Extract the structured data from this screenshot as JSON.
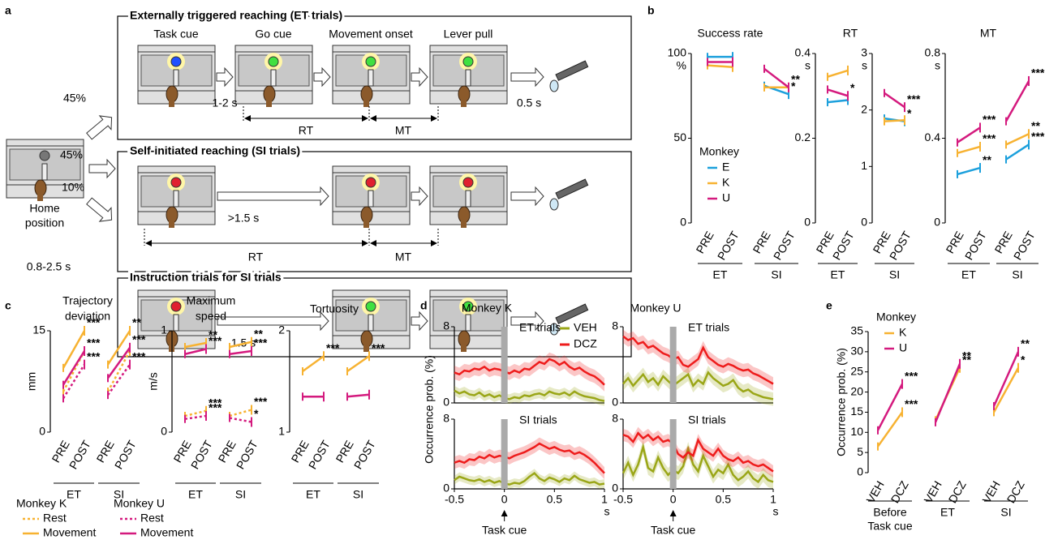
{
  "panel_labels": [
    "a",
    "b",
    "c",
    "d",
    "e"
  ],
  "diagram": {
    "home": [
      "Home",
      "position"
    ],
    "probabilities": [
      "45%",
      "45%",
      "10%"
    ],
    "delay": "0.8-2.5 s",
    "rows": [
      {
        "title": "Externally triggered reaching (ET trials)",
        "events": [
          "Task cue",
          "Go cue",
          "Movement onset",
          "Lever pull"
        ],
        "interval": "1-2 s",
        "rt": "RT",
        "mt": "MT",
        "reward_delay": "0.5 s"
      },
      {
        "title": "Self-initiated reaching (SI trials)",
        "interval": ">1.5 s",
        "rt": "RT",
        "mt": "MT"
      },
      {
        "title": "Instruction trials for SI trials",
        "interval": "1.5 s"
      }
    ]
  },
  "chart_data": [
    {
      "type": "line",
      "title": "Success rate",
      "y_unit": "%",
      "categories": [
        "PRE",
        "POST",
        "PRE",
        "POST"
      ],
      "category_colors": [
        "#1f1fe6",
        "#e8102e",
        "#1f1fe6",
        "#e8102e"
      ],
      "groups": [
        "ET",
        "SI"
      ],
      "ylim": [
        0,
        100
      ],
      "yticks": [
        0,
        50,
        100
      ],
      "legend_title": "Monkey",
      "series": [
        {
          "name": "E",
          "color": "#1ca0dc",
          "values": [
            98,
            98,
            81,
            76
          ],
          "stars": [
            null,
            null,
            null,
            "*"
          ]
        },
        {
          "name": "K",
          "color": "#f7b231",
          "values": [
            93,
            92,
            80,
            80
          ],
          "stars": [
            null,
            null,
            null,
            null
          ]
        },
        {
          "name": "U",
          "color": "#d41a7e",
          "values": [
            95,
            95,
            91,
            80
          ],
          "stars": [
            null,
            null,
            null,
            "**"
          ]
        }
      ]
    },
    {
      "type": "line",
      "title": "RT",
      "y_unit": "s",
      "categories": [
        "PRE",
        "POST"
      ],
      "category_colors": [
        "#1f1fe6",
        "#e8102e"
      ],
      "groups": [
        "ET"
      ],
      "ylim": [
        0,
        0.4
      ],
      "yticks": [
        0,
        0.2,
        0.4
      ],
      "series": [
        {
          "color": "#1ca0dc",
          "values": [
            0.285,
            0.29
          ]
        },
        {
          "color": "#f7b231",
          "values": [
            0.345,
            0.36
          ]
        },
        {
          "color": "#d41a7e",
          "values": [
            0.315,
            0.3
          ],
          "stars": [
            null,
            "*"
          ]
        }
      ]
    },
    {
      "type": "line",
      "y_unit": "s",
      "categories": [
        "PRE",
        "POST"
      ],
      "category_colors": [
        "#1f1fe6",
        "#e8102e"
      ],
      "groups": [
        "SI"
      ],
      "ylim": [
        0,
        3
      ],
      "yticks": [
        0,
        1,
        2,
        3
      ],
      "series": [
        {
          "color": "#1ca0dc",
          "values": [
            1.85,
            1.8
          ],
          "stars": [
            null,
            "*"
          ]
        },
        {
          "color": "#f7b231",
          "values": [
            1.8,
            1.82
          ]
        },
        {
          "color": "#d41a7e",
          "values": [
            2.3,
            2.05
          ],
          "stars": [
            null,
            "***"
          ]
        }
      ]
    },
    {
      "type": "line",
      "title": "MT",
      "y_unit": "s",
      "categories": [
        "PRE",
        "POST",
        "PRE",
        "POST"
      ],
      "category_colors": [
        "#1f1fe6",
        "#e8102e",
        "#1f1fe6",
        "#e8102e"
      ],
      "groups": [
        "ET",
        "SI"
      ],
      "ylim": [
        0,
        0.8
      ],
      "yticks": [
        0,
        0.4,
        0.8
      ],
      "series": [
        {
          "color": "#1ca0dc",
          "values": [
            0.23,
            0.26,
            0.3,
            0.37
          ],
          "stars": [
            null,
            "**",
            null,
            "***"
          ]
        },
        {
          "color": "#f7b231",
          "values": [
            0.33,
            0.36,
            0.37,
            0.42
          ],
          "stars": [
            null,
            "***",
            null,
            "**"
          ]
        },
        {
          "color": "#d41a7e",
          "values": [
            0.38,
            0.45,
            0.48,
            0.67
          ],
          "stars": [
            null,
            "***",
            null,
            "***"
          ]
        }
      ]
    },
    {
      "type": "line",
      "title": [
        "Trajectory",
        "deviation"
      ],
      "ylabel": "mm",
      "categories": [
        "PRE",
        "POST",
        "PRE",
        "POST"
      ],
      "category_colors": [
        "#1f1fe6",
        "#e8102e",
        "#1f1fe6",
        "#e8102e"
      ],
      "groups": [
        "ET",
        "SI"
      ],
      "ylim": [
        0,
        15
      ],
      "yticks": [
        0,
        15
      ],
      "legend_titles": [
        "Monkey K",
        "Monkey U"
      ],
      "series": [
        {
          "name": "Rest",
          "legend_group": 0,
          "dash": true,
          "color": "#f7b231",
          "values": [
            6,
            12,
            6,
            12
          ]
        },
        {
          "name": "Movement",
          "legend_group": 0,
          "dash": false,
          "color": "#f7b231",
          "values": [
            9.5,
            15,
            10,
            15
          ],
          "stars": [
            null,
            "***",
            null,
            "**"
          ]
        },
        {
          "name": "Rest",
          "legend_group": 1,
          "dash": true,
          "color": "#d41a7e",
          "values": [
            5,
            10,
            5.5,
            10
          ],
          "stars": [
            null,
            "***",
            null,
            "***"
          ]
        },
        {
          "name": "Movement",
          "legend_group": 1,
          "dash": false,
          "color": "#d41a7e",
          "values": [
            7,
            12,
            8,
            12.5
          ],
          "stars": [
            null,
            "***",
            null,
            "***"
          ]
        }
      ]
    },
    {
      "type": "line",
      "title": [
        "Maximum",
        "speed"
      ],
      "ylabel": "m/s",
      "categories": [
        "PRE",
        "POST",
        "PRE",
        "POST"
      ],
      "category_colors": [
        "#1f1fe6",
        "#e8102e",
        "#1f1fe6",
        "#e8102e"
      ],
      "groups": [
        "ET",
        "SI"
      ],
      "ylim": [
        0,
        1
      ],
      "yticks": [
        0,
        1
      ],
      "series": [
        {
          "dash": true,
          "color": "#f7b231",
          "values": [
            0.16,
            0.21,
            0.16,
            0.22
          ],
          "stars": [
            null,
            "***",
            null,
            "***"
          ]
        },
        {
          "dash": false,
          "color": "#f7b231",
          "values": [
            0.84,
            0.88,
            0.84,
            0.89
          ],
          "stars": [
            null,
            "**",
            null,
            "**"
          ]
        },
        {
          "dash": true,
          "color": "#d41a7e",
          "values": [
            0.13,
            0.16,
            0.14,
            0.1
          ],
          "stars": [
            null,
            "***",
            null,
            "*"
          ]
        },
        {
          "dash": false,
          "color": "#d41a7e",
          "values": [
            0.77,
            0.82,
            0.77,
            0.8
          ],
          "stars": [
            null,
            "***",
            null,
            "***"
          ]
        }
      ]
    },
    {
      "type": "line",
      "title": [
        "Tortuosity"
      ],
      "categories": [
        "PRE",
        "POST",
        "PRE",
        "POST"
      ],
      "category_colors": [
        "#1f1fe6",
        "#e8102e",
        "#1f1fe6",
        "#e8102e"
      ],
      "groups": [
        "ET",
        "SI"
      ],
      "ylim": [
        1,
        2
      ],
      "yticks": [
        1,
        2
      ],
      "series": [
        {
          "dash": false,
          "color": "#f7b231",
          "values": [
            1.6,
            1.75,
            1.6,
            1.75
          ],
          "stars": [
            null,
            "***",
            null,
            "***"
          ]
        },
        {
          "dash": false,
          "color": "#d41a7e",
          "values": [
            1.35,
            1.35,
            1.35,
            1.37
          ]
        }
      ]
    },
    {
      "type": "line",
      "title": "Monkey K",
      "subtitle": "ET trials",
      "event_x": 0,
      "x": [
        -0.5,
        -0.45,
        -0.4,
        -0.35,
        -0.3,
        -0.25,
        -0.2,
        -0.15,
        -0.1,
        -0.05,
        0,
        0.05,
        0.1,
        0.15,
        0.2,
        0.25,
        0.3,
        0.35,
        0.4,
        0.45,
        0.5,
        0.55,
        0.6,
        0.65,
        0.7,
        0.75,
        0.8,
        0.85,
        0.9,
        0.95,
        1
      ],
      "xlim": [
        -0.5,
        1
      ],
      "ylim": [
        0,
        8
      ],
      "yticks": [
        0,
        8
      ],
      "series": [
        {
          "name": "VEH",
          "color": "#9aa617",
          "error": 0.5,
          "values": [
            1.3,
            1.0,
            1.2,
            0.9,
            0.8,
            1.1,
            0.7,
            0.9,
            0.6,
            0.8,
            0.5,
            0.4,
            0.6,
            0.5,
            0.8,
            0.7,
            0.9,
            1.0,
            0.8,
            1.2,
            1.0,
            0.9,
            1.1,
            0.8,
            1.2,
            0.9,
            0.7,
            0.6,
            0.5,
            0.3,
            0.2
          ]
        },
        {
          "name": "DCZ",
          "color": "#ee1c1c",
          "error": 0.7,
          "values": [
            3.2,
            3.0,
            3.4,
            3.3,
            3.6,
            3.5,
            3.8,
            3.4,
            3.6,
            3.5,
            3.3,
            3.1,
            3.4,
            3.2,
            3.6,
            3.5,
            3.9,
            4.3,
            4.1,
            4.6,
            4.4,
            4.0,
            4.3,
            3.8,
            3.5,
            3.7,
            3.3,
            3.0,
            2.8,
            2.4,
            1.9
          ]
        }
      ]
    },
    {
      "type": "line",
      "title": "Monkey U",
      "subtitle": "ET trials",
      "event_x": 0,
      "x": [
        -0.5,
        -0.45,
        -0.4,
        -0.35,
        -0.3,
        -0.25,
        -0.2,
        -0.15,
        -0.1,
        -0.05,
        0,
        0.05,
        0.1,
        0.15,
        0.2,
        0.25,
        0.3,
        0.35,
        0.4,
        0.45,
        0.5,
        0.55,
        0.6,
        0.65,
        0.7,
        0.75,
        0.8,
        0.85,
        0.9,
        0.95,
        1
      ],
      "xlim": [
        -0.5,
        1
      ],
      "ylim": [
        0,
        8
      ],
      "yticks": [
        0,
        8
      ],
      "series": [
        {
          "color": "#9aa617",
          "error": 0.7,
          "values": [
            2.0,
            2.6,
            1.8,
            2.4,
            3.0,
            2.2,
            2.6,
            1.9,
            2.8,
            2.3,
            1.8,
            2.2,
            2.6,
            3.0,
            1.8,
            2.4,
            2.0,
            3.2,
            2.6,
            2.2,
            1.8,
            2.0,
            2.4,
            1.6,
            1.2,
            1.4,
            1.0,
            0.8,
            0.6,
            0.5,
            0.4
          ]
        },
        {
          "color": "#ee1c1c",
          "error": 0.7,
          "values": [
            7.0,
            6.6,
            6.8,
            6.2,
            6.4,
            5.8,
            6.0,
            5.6,
            5.2,
            5.0,
            4.6,
            4.8,
            4.0,
            3.8,
            4.2,
            4.6,
            5.8,
            4.8,
            4.4,
            4.0,
            3.8,
            4.1,
            3.9,
            3.6,
            3.4,
            3.5,
            3.1,
            2.9,
            2.6,
            2.3,
            2.0
          ]
        }
      ]
    },
    {
      "type": "line",
      "subtitle": "SI trials",
      "ylabel": "Occurrence prob. (%)",
      "xlabel": "s",
      "annotation": "Task cue",
      "event_x": 0,
      "x": [
        -0.5,
        -0.45,
        -0.4,
        -0.35,
        -0.3,
        -0.25,
        -0.2,
        -0.15,
        -0.1,
        -0.05,
        0,
        0.05,
        0.1,
        0.15,
        0.2,
        0.25,
        0.3,
        0.35,
        0.4,
        0.45,
        0.5,
        0.55,
        0.6,
        0.65,
        0.7,
        0.75,
        0.8,
        0.85,
        0.9,
        0.95,
        1
      ],
      "xlim": [
        -0.5,
        1
      ],
      "xticks": [
        -0.5,
        0,
        0.5,
        1
      ],
      "ylim": [
        0,
        8
      ],
      "yticks": [
        0,
        8
      ],
      "series": [
        {
          "color": "#9aa617",
          "error": 0.5,
          "values": [
            1.0,
            1.4,
            1.2,
            1.0,
            0.9,
            1.1,
            0.8,
            1.0,
            0.7,
            0.9,
            0.6,
            0.5,
            0.7,
            0.6,
            0.9,
            1.4,
            1.8,
            1.2,
            0.9,
            1.3,
            1.1,
            0.8,
            1.2,
            1.0,
            1.5,
            1.1,
            0.9,
            0.7,
            0.8,
            0.5,
            0.6
          ]
        },
        {
          "color": "#ee1c1c",
          "error": 0.7,
          "values": [
            3.0,
            3.2,
            3.0,
            3.4,
            3.3,
            3.7,
            3.5,
            3.9,
            3.6,
            3.8,
            3.7,
            3.5,
            3.8,
            4.0,
            4.2,
            4.5,
            4.8,
            5.2,
            4.9,
            4.6,
            4.8,
            4.5,
            4.3,
            4.4,
            4.0,
            4.2,
            3.9,
            3.5,
            3.0,
            2.4,
            1.8
          ]
        }
      ]
    },
    {
      "type": "line",
      "subtitle": "SI trials",
      "xlabel": "s",
      "annotation": "Task cue",
      "event_x": 0,
      "x": [
        -0.5,
        -0.45,
        -0.4,
        -0.35,
        -0.3,
        -0.25,
        -0.2,
        -0.15,
        -0.1,
        -0.05,
        0,
        0.05,
        0.1,
        0.15,
        0.2,
        0.25,
        0.3,
        0.35,
        0.4,
        0.45,
        0.5,
        0.55,
        0.6,
        0.65,
        0.7,
        0.75,
        0.8,
        0.85,
        0.9,
        0.95,
        1
      ],
      "xlim": [
        -0.5,
        1
      ],
      "xticks": [
        -0.5,
        0,
        0.5,
        1
      ],
      "ylim": [
        0,
        8
      ],
      "yticks": [
        0,
        8
      ],
      "series": [
        {
          "color": "#9aa617",
          "error": 0.8,
          "values": [
            1.8,
            3.0,
            1.6,
            2.8,
            4.8,
            2.4,
            2.0,
            3.6,
            2.4,
            1.6,
            2.2,
            1.8,
            2.6,
            4.6,
            2.8,
            2.0,
            3.8,
            2.6,
            1.4,
            2.2,
            1.8,
            2.8,
            1.6,
            1.0,
            1.4,
            2.0,
            1.2,
            0.8,
            1.6,
            1.0,
            0.8
          ]
        },
        {
          "color": "#ee1c1c",
          "error": 0.7,
          "values": [
            6.2,
            6.0,
            5.4,
            6.4,
            5.8,
            6.2,
            5.6,
            6.0,
            5.4,
            5.6,
            5.2,
            4.0,
            3.6,
            4.2,
            3.8,
            5.6,
            4.6,
            4.2,
            3.8,
            4.6,
            3.8,
            3.4,
            3.2,
            3.6,
            3.0,
            3.2,
            2.8,
            2.6,
            2.8,
            2.4,
            2.0
          ]
        }
      ]
    },
    {
      "type": "line",
      "ylabel": "Occurrence prob. (%)",
      "categories": [
        "VEH",
        "DCZ",
        "VEH",
        "DCZ",
        "VEH",
        "DCZ"
      ],
      "category_colors": [
        "#9aa617",
        "#ee1c1c",
        "#9aa617",
        "#ee1c1c",
        "#9aa617",
        "#ee1c1c"
      ],
      "groups": [
        [
          "Before",
          "Task cue"
        ],
        "ET",
        "SI"
      ],
      "ylim": [
        0,
        35
      ],
      "yticks": [
        0,
        5,
        10,
        15,
        20,
        25,
        30,
        35
      ],
      "legend_title": "Monkey",
      "series": [
        {
          "name": "K",
          "color": "#f7b231",
          "values": [
            6.5,
            15,
            13,
            26,
            15,
            26
          ],
          "stars": [
            null,
            "***",
            null,
            "**",
            null,
            "*"
          ]
        },
        {
          "name": "U",
          "color": "#d41a7e",
          "values": [
            10.5,
            22,
            12.5,
            27,
            16.5,
            30
          ],
          "stars": [
            null,
            "***",
            null,
            "**",
            null,
            "**"
          ]
        }
      ]
    }
  ]
}
